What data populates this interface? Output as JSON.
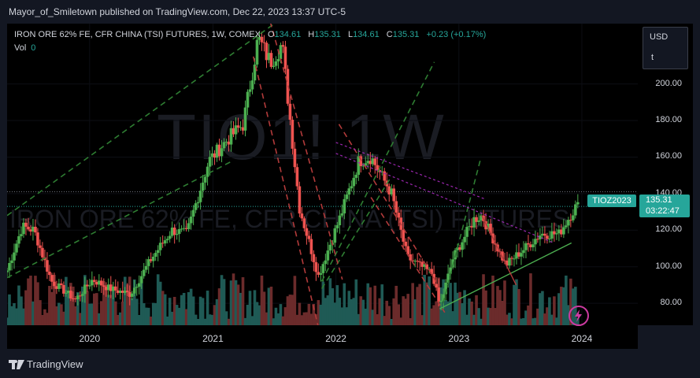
{
  "publish": "Mayor_of_Smiletown published on TradingView.com, Dec 22, 2023 13:37 UTC-5",
  "symbol_line": {
    "name": "IRON ORE 62% FE, CFR CHINA (TSI) FUTURES, 1W, COMEX",
    "o_label": "O",
    "o_value": "134.61",
    "h_label": "H",
    "h_value": "135.31",
    "l_label": "L",
    "l_value": "134.61",
    "c_label": "C",
    "c_value": "135.31",
    "change": "+0.23 (+0.17%)"
  },
  "vol": {
    "label": "Vol",
    "value": "0"
  },
  "watermark": {
    "main": "TIO1! 1W",
    "sub": "IRON ORE 62% FE, CFR CHINA (TSI) FUTURES"
  },
  "axis": {
    "currency": "USD",
    "unit": "t"
  },
  "last_price": {
    "symbol": "TIOZ2023",
    "price": "135.31",
    "countdown": "03:22:47"
  },
  "footer": {
    "brand": "TradingView"
  },
  "colors": {
    "up": "#26a69a",
    "up_candle": "#4caf50",
    "down": "#ef5350",
    "bg": "#000000",
    "panel": "#131722",
    "trend_green": "#2e7d32",
    "trend_red": "#b23a3a",
    "trend_purple": "#9c27b0"
  },
  "icons": {
    "flash": "lightning-icon",
    "logo": "tradingview-logo-icon"
  },
  "chart_data": {
    "type": "candlestick",
    "ylim": [
      68,
      233
    ],
    "y_ticks": [
      80,
      100,
      120,
      140,
      160,
      180,
      200
    ],
    "y_tick_labels": [
      "80.00",
      "100.00",
      "120.00",
      "140.00",
      "160.00",
      "180.00",
      "200.00"
    ],
    "x_ticks": [
      "2020",
      "2021",
      "2022",
      "2023",
      "2024"
    ],
    "x_tick_dates": [
      "2020-01-01",
      "2021-01-01",
      "2022-01-01",
      "2023-01-01",
      "2024-01-01"
    ],
    "x_range": [
      "2019-05-01",
      "2024-06-15"
    ],
    "series_path": [
      [
        "2019-05-01",
        98
      ],
      [
        "2019-06-15",
        122
      ],
      [
        "2019-07-20",
        120
      ],
      [
        "2019-09-10",
        92
      ],
      [
        "2019-11-20",
        82
      ],
      [
        "2020-01-10",
        93
      ],
      [
        "2020-03-01",
        88
      ],
      [
        "2020-05-01",
        85
      ],
      [
        "2020-07-01",
        104
      ],
      [
        "2020-09-01",
        120
      ],
      [
        "2020-10-15",
        118
      ],
      [
        "2020-12-20",
        158
      ],
      [
        "2021-02-15",
        170
      ],
      [
        "2021-04-01",
        178
      ],
      [
        "2021-05-15",
        225
      ],
      [
        "2021-06-20",
        212
      ],
      [
        "2021-07-25",
        222
      ],
      [
        "2021-09-15",
        132
      ],
      [
        "2021-11-10",
        95
      ],
      [
        "2022-01-15",
        128
      ],
      [
        "2022-03-10",
        158
      ],
      [
        "2022-04-15",
        160
      ],
      [
        "2022-06-15",
        140
      ],
      [
        "2022-08-01",
        105
      ],
      [
        "2022-10-15",
        96
      ],
      [
        "2022-11-05",
        78
      ],
      [
        "2022-12-15",
        105
      ],
      [
        "2023-02-15",
        126
      ],
      [
        "2023-03-10",
        128
      ],
      [
        "2023-05-20",
        101
      ],
      [
        "2023-07-15",
        110
      ],
      [
        "2023-09-01",
        118
      ],
      [
        "2023-10-25",
        118
      ],
      [
        "2023-12-22",
        135.31
      ]
    ],
    "trendlines": [
      {
        "style": "green-dashed",
        "from": [
          "2019-05-01",
          128
        ],
        "to": [
          "2021-07-10",
          234
        ]
      },
      {
        "style": "green-dashed",
        "from": [
          "2019-05-01",
          94
        ],
        "to": [
          "2021-03-01",
          158
        ]
      },
      {
        "style": "green-dashed",
        "from": [
          "2021-11-20",
          92
        ],
        "to": [
          "2022-10-20",
          212
        ]
      },
      {
        "style": "green-dashed",
        "from": [
          "2021-11-20",
          88
        ],
        "to": [
          "2022-06-10",
          148
        ]
      },
      {
        "style": "green-dashed",
        "from": [
          "2022-11-15",
          80
        ],
        "to": [
          "2023-03-05",
          158
        ]
      },
      {
        "style": "red-dashed",
        "from": [
          "2021-06-20",
          234
        ],
        "to": [
          "2022-01-20",
          93
        ]
      },
      {
        "style": "red-dashed",
        "from": [
          "2021-05-01",
          215
        ],
        "to": [
          "2021-11-15",
          63
        ]
      },
      {
        "style": "red-dashed",
        "from": [
          "2022-01-10",
          178
        ],
        "to": [
          "2022-11-01",
          90
        ]
      },
      {
        "style": "red-dashed",
        "from": [
          "2022-04-15",
          138
        ],
        "to": [
          "2022-11-20",
          75
        ]
      },
      {
        "style": "purple-dashed",
        "from": [
          "2022-01-01",
          168
        ],
        "to": [
          "2023-03-20",
          137
        ]
      },
      {
        "style": "purple-dashed",
        "from": [
          "2022-01-01",
          162
        ],
        "to": [
          "2023-10-10",
          113
        ]
      },
      {
        "style": "green-solid",
        "from": [
          "2022-11-05",
          77
        ],
        "to": [
          "2023-12-01",
          113
        ]
      },
      {
        "style": "red-solid",
        "from": [
          "2023-03-10",
          128
        ],
        "to": [
          "2023-06-20",
          90
        ]
      }
    ],
    "highlight_ranges": [
      {
        "style": "up",
        "from": [
          "2019-05-01",
          133
        ],
        "to": [
          "2024-06-15",
          133
        ]
      },
      {
        "style": "grey",
        "from": [
          "2019-05-01",
          141
        ],
        "to": [
          "2024-06-15",
          141
        ]
      }
    ]
  }
}
